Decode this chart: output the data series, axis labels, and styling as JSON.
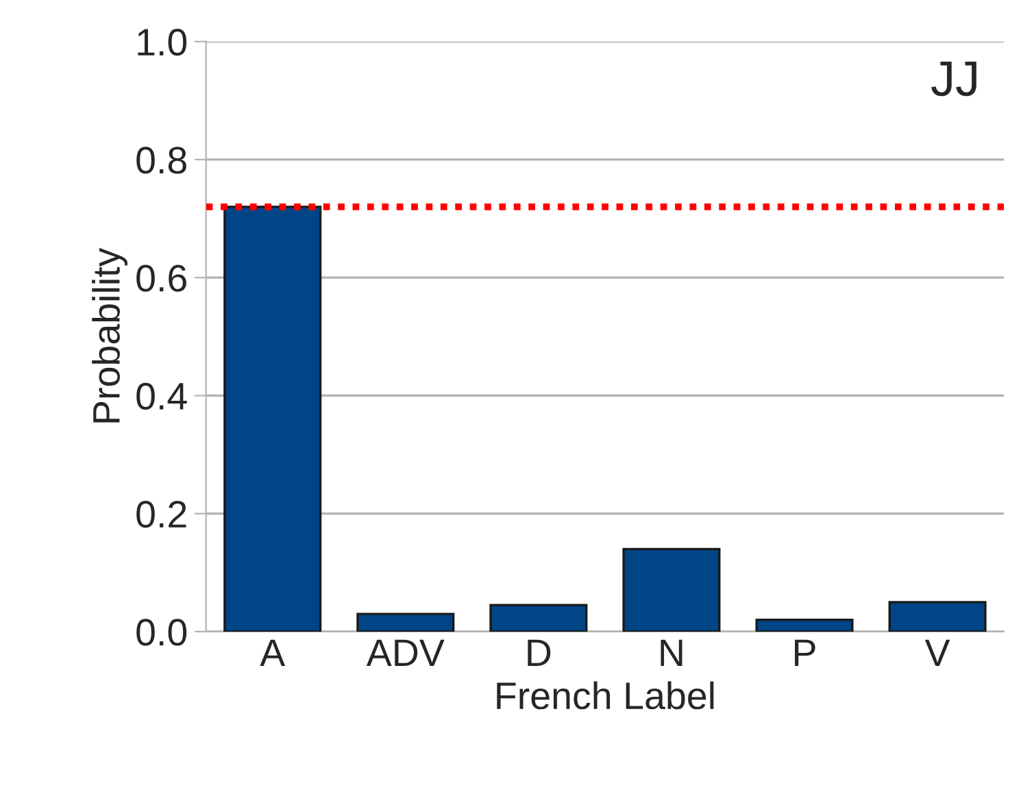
{
  "chart_data": {
    "type": "bar",
    "xlabel": "French Label",
    "ylabel": "Probability",
    "annotations": [
      "JJ"
    ],
    "categories": [
      "A",
      "ADV",
      "D",
      "N",
      "P",
      "V"
    ],
    "values": [
      0.72,
      0.03,
      0.045,
      0.14,
      0.02,
      0.05
    ],
    "color": "#004586",
    "ylim": [
      0,
      1.0
    ],
    "yticks": [
      {
        "value": 0,
        "label": "0.0"
      },
      {
        "value": 0.2,
        "label": "0.2"
      },
      {
        "value": 0.4,
        "label": "0.4"
      },
      {
        "value": 0.6,
        "label": "0.6"
      },
      {
        "value": 0.8,
        "label": "0.8"
      },
      {
        "value": 1.0,
        "label": "1.0"
      }
    ],
    "grid": "y",
    "ref_lines": [
      {
        "axis": "y",
        "value": 0.72,
        "color": "#ff0000",
        "line_style": "dotted"
      }
    ]
  }
}
